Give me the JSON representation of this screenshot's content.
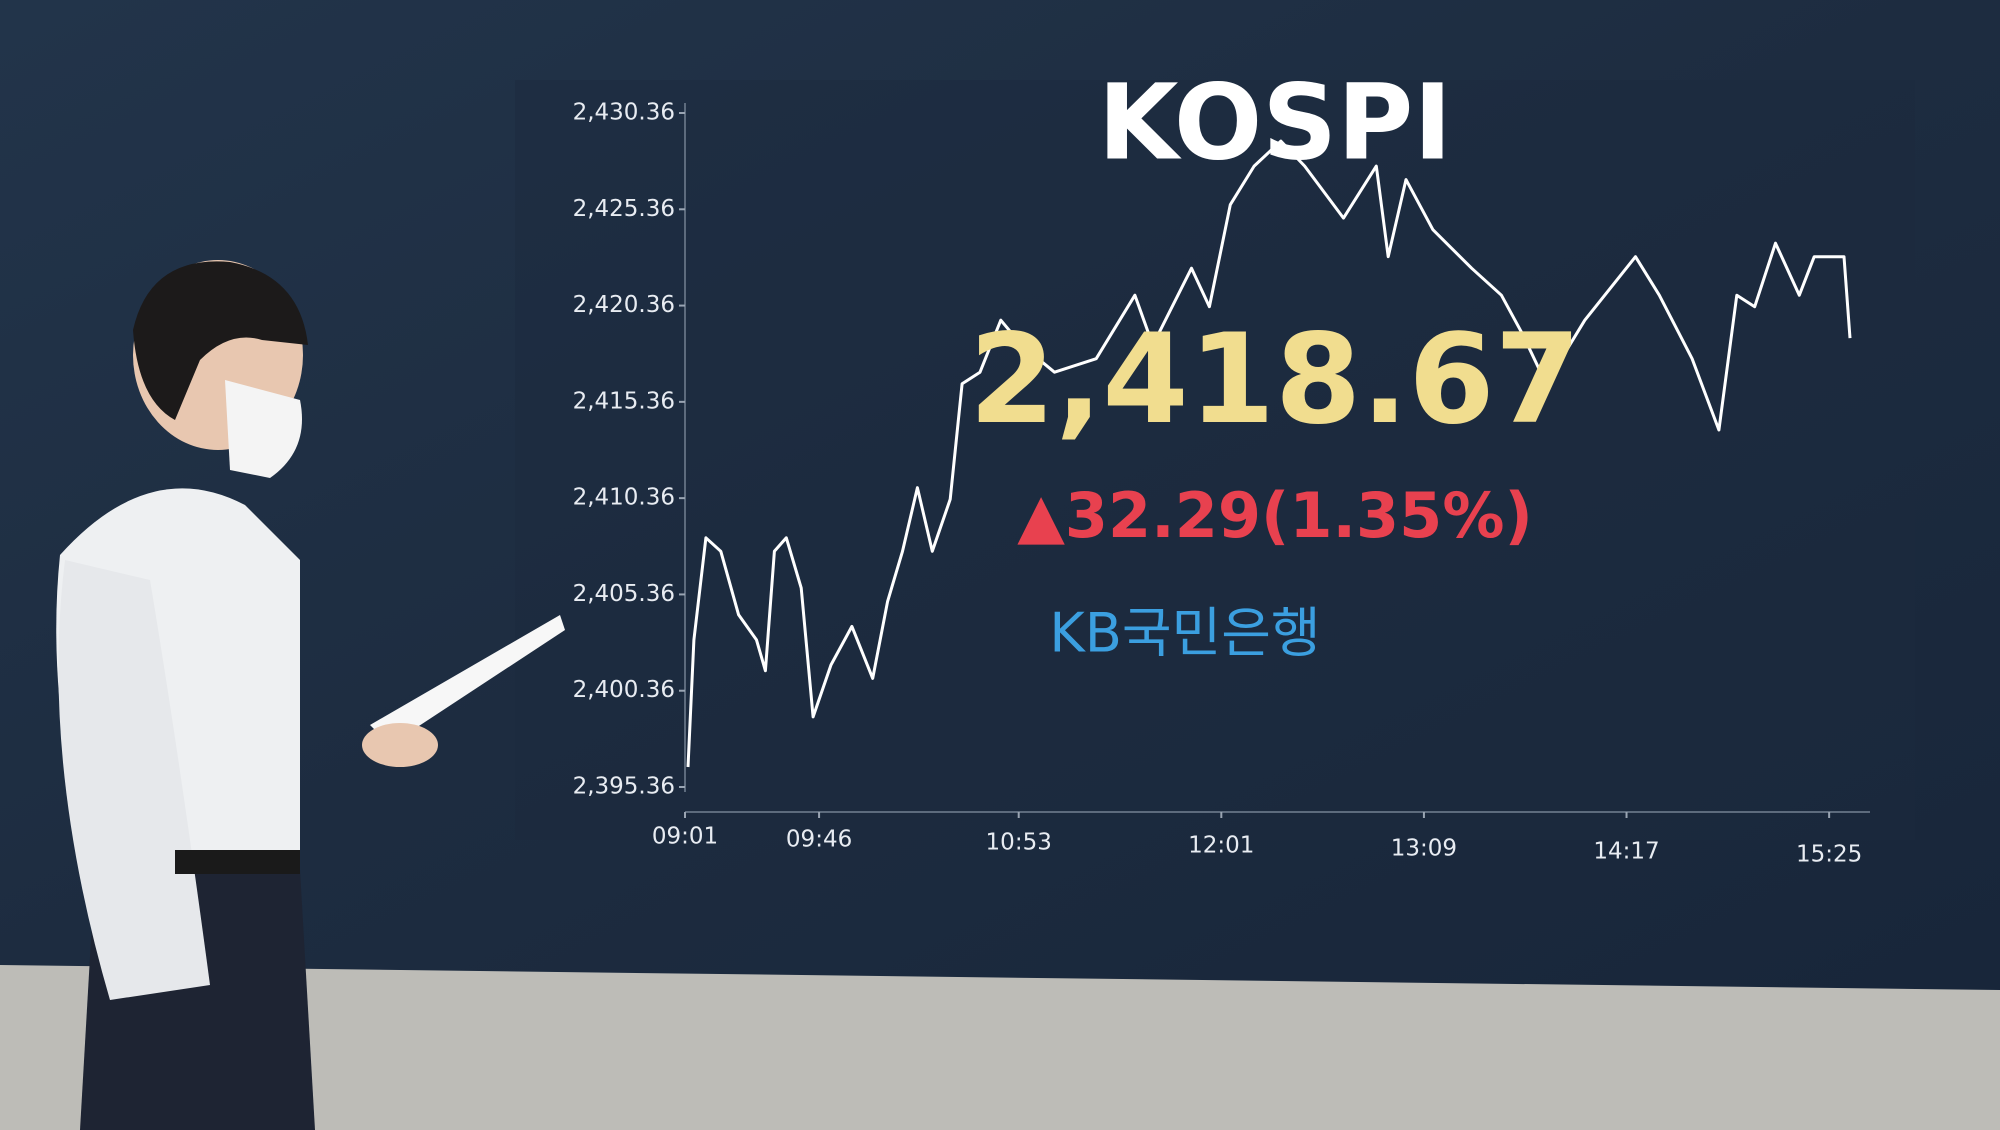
{
  "chart_data": {
    "type": "line",
    "title": "KOSPI",
    "value_text": "2,418.67",
    "change_text": "▲32.29(1.35%)",
    "sponsor": "KB국민은행",
    "x": [
      "09:02",
      "09:04",
      "09:08",
      "09:13",
      "09:19",
      "09:25",
      "09:28",
      "09:31",
      "09:35",
      "09:40",
      "09:44",
      "09:50",
      "09:57",
      "10:04",
      "10:09",
      "10:14",
      "10:19",
      "10:24",
      "10:30",
      "10:34",
      "10:40",
      "10:47",
      "10:54",
      "11:05",
      "11:19",
      "11:32",
      "11:38",
      "11:51",
      "11:57",
      "12:04",
      "12:12",
      "12:21",
      "12:29",
      "12:42",
      "12:53",
      "12:57",
      "13:03",
      "13:12",
      "13:25",
      "13:35",
      "13:42",
      "13:50",
      "14:03",
      "14:20",
      "14:28",
      "14:39",
      "14:48",
      "14:54",
      "15:00",
      "15:07",
      "15:15",
      "15:20",
      "15:30",
      "15:32"
    ],
    "series": [
      {
        "name": "KOSPI",
        "color": "#ffffff",
        "values": [
          2396.4,
          2403.0,
          2408.3,
          2407.6,
          2404.3,
          2403.0,
          2401.4,
          2407.6,
          2408.3,
          2405.7,
          2399.0,
          2401.7,
          2403.7,
          2401.0,
          2405.0,
          2407.6,
          2410.9,
          2407.6,
          2410.3,
          2416.3,
          2416.9,
          2419.6,
          2418.3,
          2416.9,
          2417.6,
          2420.9,
          2418.3,
          2422.3,
          2420.3,
          2425.6,
          2427.6,
          2428.9,
          2427.6,
          2424.9,
          2427.6,
          2422.9,
          2426.9,
          2424.3,
          2422.3,
          2420.9,
          2418.9,
          2416.3,
          2419.6,
          2422.9,
          2420.9,
          2417.6,
          2413.9,
          2420.9,
          2420.3,
          2423.6,
          2420.9,
          2422.9,
          2422.9,
          2418.67
        ]
      }
    ],
    "xlim": [
      "09:01",
      "15:32"
    ],
    "xticks": [
      "09:01",
      "09:46",
      "10:53",
      "12:01",
      "13:09",
      "14:17",
      "15:25"
    ],
    "ylim": [
      2395.36,
      2430.36
    ],
    "yticks": [
      {
        "value": 2395.36,
        "label": "2,395.36"
      },
      {
        "value": 2400.36,
        "label": "2,400.36"
      },
      {
        "value": 2405.36,
        "label": "2,405.36"
      },
      {
        "value": 2410.36,
        "label": "2,410.36"
      },
      {
        "value": 2415.36,
        "label": "2,415.36"
      },
      {
        "value": 2420.36,
        "label": "2,420.36"
      },
      {
        "value": 2425.36,
        "label": "2,425.36"
      },
      {
        "value": 2430.36,
        "label": "2,430.36"
      }
    ]
  }
}
